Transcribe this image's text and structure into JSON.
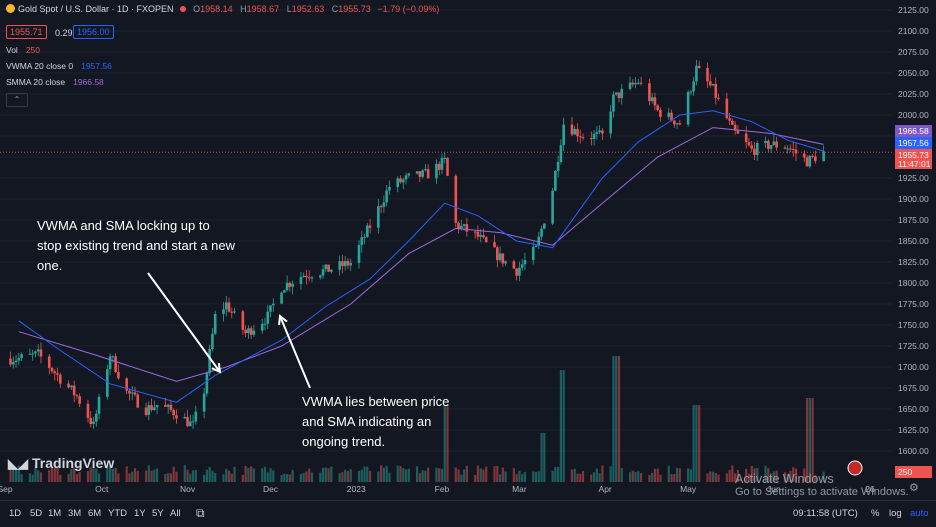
{
  "header": {
    "symbol": "Gold Spot / U.S. Dollar · 1D · FXOPEN",
    "o_label": "O",
    "o": "1958.14",
    "h_label": "H",
    "h": "1958.67",
    "l_label": "L",
    "l": "1952.63",
    "c_label": "C",
    "c": "1955.73",
    "change": "−1.79 (−0.09%)",
    "bid": "1955.71",
    "spread": "0.29",
    "ask": "1956.00"
  },
  "indicators": [
    {
      "name": "Vol",
      "value": "250",
      "color": "#ef5350"
    },
    {
      "name": "VWMA 20 close 0",
      "value": "1957.56",
      "color": "#2962ff"
    },
    {
      "name": "SMMA 20 close",
      "value": "1966.58",
      "color": "#9c6ade"
    }
  ],
  "colors": {
    "up": "#26a69a",
    "down": "#ef5350",
    "vwma": "#2962ff",
    "smma": "#9c6ade",
    "bg": "#131722",
    "grid": "#1e222d"
  },
  "price_labels": {
    "smma": "1966.58",
    "vwma": "1957.56",
    "last": "1955.73",
    "countdown": "11:47:01",
    "vol": "250"
  },
  "annotations": {
    "note1": [
      "VWMA and SMA locking up to",
      "stop existing trend and start a new",
      "one."
    ],
    "note2": [
      "VWMA lies between price",
      "and SMA indicating an",
      "ongoing trend."
    ]
  },
  "brand": "TradingView",
  "watermark": {
    "line1": "Activate Windows",
    "line2": "Go to Settings to activate Windows."
  },
  "bottom": {
    "timeframes": [
      "1D",
      "5D",
      "1M",
      "3M",
      "6M",
      "YTD",
      "1Y",
      "5Y",
      "All"
    ],
    "clock": "09:11:58 (UTC)",
    "pct": "%",
    "log": "log",
    "auto": "auto"
  },
  "chart_data": {
    "type": "candlestick",
    "title": "Gold Spot / U.S. Dollar · 1D · FXOPEN",
    "y_ticks": [
      1600,
      1625,
      1650,
      1675,
      1700,
      1725,
      1750,
      1775,
      1800,
      1825,
      1850,
      1875,
      1900,
      1925,
      1950,
      1975,
      2000,
      2025,
      2050,
      2075,
      2100,
      2125
    ],
    "ylim": [
      1575,
      2128
    ],
    "x_tick_labels": [
      "Sep",
      "Oct",
      "Nov",
      "Dec",
      "2023",
      "Feb",
      "Mar",
      "Apr",
      "May",
      "Jun",
      "26"
    ],
    "close_path": [
      {
        "date": "2022-09-01",
        "close": 1710
      },
      {
        "date": "2022-09-08",
        "close": 1715
      },
      {
        "date": "2022-09-15",
        "close": 1690
      },
      {
        "date": "2022-09-22",
        "close": 1665
      },
      {
        "date": "2022-09-28",
        "close": 1630
      },
      {
        "date": "2022-10-04",
        "close": 1715
      },
      {
        "date": "2022-10-10",
        "close": 1670
      },
      {
        "date": "2022-10-17",
        "close": 1650
      },
      {
        "date": "2022-10-21",
        "close": 1655
      },
      {
        "date": "2022-10-28",
        "close": 1645
      },
      {
        "date": "2022-11-03",
        "close": 1630
      },
      {
        "date": "2022-11-07",
        "close": 1672
      },
      {
        "date": "2022-11-11",
        "close": 1760
      },
      {
        "date": "2022-11-15",
        "close": 1775
      },
      {
        "date": "2022-11-22",
        "close": 1740
      },
      {
        "date": "2022-11-30",
        "close": 1760
      },
      {
        "date": "2022-12-05",
        "close": 1795
      },
      {
        "date": "2022-12-13",
        "close": 1810
      },
      {
        "date": "2022-12-21",
        "close": 1815
      },
      {
        "date": "2022-12-30",
        "close": 1824
      },
      {
        "date": "2023-01-06",
        "close": 1868
      },
      {
        "date": "2023-01-13",
        "close": 1915
      },
      {
        "date": "2023-01-20",
        "close": 1925
      },
      {
        "date": "2023-01-27",
        "close": 1930
      },
      {
        "date": "2023-02-02",
        "close": 1945
      },
      {
        "date": "2023-02-06",
        "close": 1870
      },
      {
        "date": "2023-02-14",
        "close": 1855
      },
      {
        "date": "2023-02-22",
        "close": 1830
      },
      {
        "date": "2023-02-28",
        "close": 1815
      },
      {
        "date": "2023-03-07",
        "close": 1840
      },
      {
        "date": "2023-03-13",
        "close": 1912
      },
      {
        "date": "2023-03-17",
        "close": 1990
      },
      {
        "date": "2023-03-24",
        "close": 1975
      },
      {
        "date": "2023-03-31",
        "close": 1975
      },
      {
        "date": "2023-04-04",
        "close": 2020
      },
      {
        "date": "2023-04-13",
        "close": 2040
      },
      {
        "date": "2023-04-20",
        "close": 2005
      },
      {
        "date": "2023-04-28",
        "close": 1990
      },
      {
        "date": "2023-05-04",
        "close": 2055
      },
      {
        "date": "2023-05-10",
        "close": 2030
      },
      {
        "date": "2023-05-17",
        "close": 1982
      },
      {
        "date": "2023-05-24",
        "close": 1958
      },
      {
        "date": "2023-05-31",
        "close": 1965
      },
      {
        "date": "2023-06-06",
        "close": 1962
      },
      {
        "date": "2023-06-13",
        "close": 1945
      },
      {
        "date": "2023-06-19",
        "close": 1955
      }
    ],
    "vwma_path": [
      {
        "date": "2022-09-01",
        "value": 1755
      },
      {
        "date": "2022-09-15",
        "value": 1722
      },
      {
        "date": "2022-10-04",
        "value": 1680
      },
      {
        "date": "2022-10-28",
        "value": 1658
      },
      {
        "date": "2022-11-11",
        "value": 1690
      },
      {
        "date": "2022-12-05",
        "value": 1732
      },
      {
        "date": "2022-12-21",
        "value": 1772
      },
      {
        "date": "2023-01-06",
        "value": 1805
      },
      {
        "date": "2023-01-20",
        "value": 1850
      },
      {
        "date": "2023-02-02",
        "value": 1895
      },
      {
        "date": "2023-02-14",
        "value": 1880
      },
      {
        "date": "2023-02-28",
        "value": 1850
      },
      {
        "date": "2023-03-13",
        "value": 1842
      },
      {
        "date": "2023-03-31",
        "value": 1925
      },
      {
        "date": "2023-04-13",
        "value": 1968
      },
      {
        "date": "2023-04-28",
        "value": 2000
      },
      {
        "date": "2023-05-10",
        "value": 2005
      },
      {
        "date": "2023-05-24",
        "value": 1992
      },
      {
        "date": "2023-06-06",
        "value": 1970
      },
      {
        "date": "2023-06-19",
        "value": 1957
      }
    ],
    "smma_path": [
      {
        "date": "2022-09-01",
        "value": 1742
      },
      {
        "date": "2022-09-28",
        "value": 1715
      },
      {
        "date": "2022-10-28",
        "value": 1683
      },
      {
        "date": "2022-11-15",
        "value": 1700
      },
      {
        "date": "2022-12-05",
        "value": 1725
      },
      {
        "date": "2022-12-30",
        "value": 1775
      },
      {
        "date": "2023-01-20",
        "value": 1835
      },
      {
        "date": "2023-02-06",
        "value": 1865
      },
      {
        "date": "2023-02-22",
        "value": 1860
      },
      {
        "date": "2023-03-13",
        "value": 1845
      },
      {
        "date": "2023-03-31",
        "value": 1895
      },
      {
        "date": "2023-04-20",
        "value": 1950
      },
      {
        "date": "2023-05-10",
        "value": 1985
      },
      {
        "date": "2023-05-31",
        "value": 1978
      },
      {
        "date": "2023-06-19",
        "value": 1965
      }
    ],
    "volume_spikes": [
      {
        "date": "2023-02-03",
        "value": 0.55
      },
      {
        "date": "2023-03-10",
        "value": 0.35
      },
      {
        "date": "2023-03-17",
        "value": 0.8
      },
      {
        "date": "2023-04-05",
        "value": 0.9
      },
      {
        "date": "2023-05-04",
        "value": 0.55
      },
      {
        "date": "2023-06-14",
        "value": 0.6
      }
    ]
  }
}
